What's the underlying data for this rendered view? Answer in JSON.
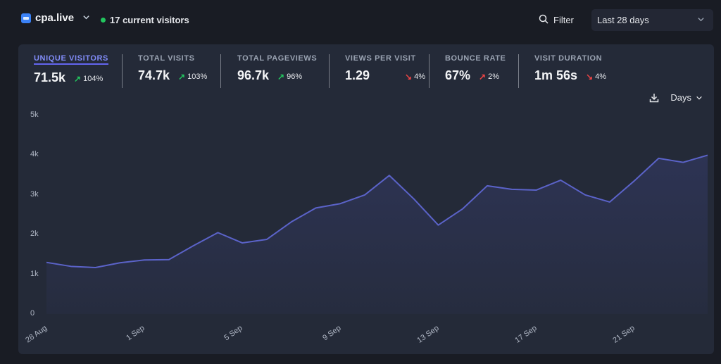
{
  "header": {
    "site_name": "cpa.live",
    "current_visitors": "17 current visitors",
    "filter_label": "Filter",
    "date_range": "Last 28 days"
  },
  "metrics": [
    {
      "label": "UNIQUE VISITORS",
      "value": "71.5k",
      "change": "104%",
      "trend": "up",
      "active": true
    },
    {
      "label": "TOTAL VISITS",
      "value": "74.7k",
      "change": "103%",
      "trend": "up"
    },
    {
      "label": "TOTAL PAGEVIEWS",
      "value": "96.7k",
      "change": "96%",
      "trend": "up"
    },
    {
      "label": "VIEWS PER VISIT",
      "value": "1.29",
      "change": "4%",
      "trend": "down"
    },
    {
      "label": "BOUNCE RATE",
      "value": "67%",
      "change": "2%",
      "trend": "up-bad"
    },
    {
      "label": "VISIT DURATION",
      "value": "1m 56s",
      "change": "4%",
      "trend": "down"
    }
  ],
  "chart_controls": {
    "interval_label": "Days"
  },
  "colors": {
    "line": "#5b63c9",
    "good": "#22c55e",
    "bad": "#ef4444"
  },
  "chart_data": {
    "type": "area",
    "x": [
      "28 Aug",
      "29 Aug",
      "30 Aug",
      "31 Aug",
      "1 Sep",
      "2 Sep",
      "3 Sep",
      "4 Sep",
      "5 Sep",
      "6 Sep",
      "7 Sep",
      "8 Sep",
      "9 Sep",
      "10 Sep",
      "11 Sep",
      "12 Sep",
      "13 Sep",
      "14 Sep",
      "15 Sep",
      "16 Sep",
      "17 Sep",
      "18 Sep",
      "19 Sep",
      "20 Sep",
      "21 Sep",
      "22 Sep",
      "23 Sep",
      "24 Sep"
    ],
    "x_tick_labels": [
      "28 Aug",
      "1 Sep",
      "5 Sep",
      "9 Sep",
      "13 Sep",
      "17 Sep",
      "21 Sep"
    ],
    "y_ticks": [
      "0",
      "1k",
      "2k",
      "3k",
      "4k",
      "5k"
    ],
    "ylim": [
      0,
      5000
    ],
    "series": [
      {
        "values": [
          1300,
          1200,
          1170,
          1290,
          1360,
          1370,
          1720,
          2050,
          1790,
          1880,
          2320,
          2670,
          2780,
          3000,
          3490,
          2900,
          2240,
          2650,
          3230,
          3140,
          3120,
          3370,
          3000,
          2820,
          3350,
          3920,
          3820,
          4000
        ]
      }
    ]
  }
}
